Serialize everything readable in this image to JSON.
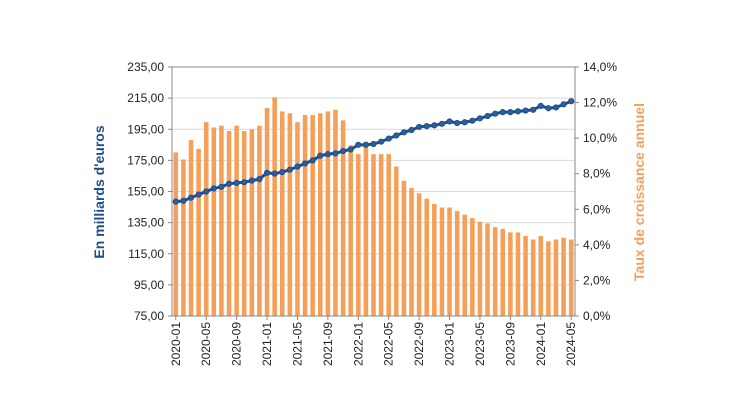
{
  "chart_data": {
    "type": "bar-line",
    "categories": [
      "2020-01",
      null,
      null,
      null,
      "2020-05",
      null,
      null,
      null,
      "2020-09",
      null,
      null,
      null,
      "2021-01",
      null,
      null,
      null,
      "2021-05",
      null,
      null,
      null,
      "2021-09",
      null,
      null,
      null,
      "2022-01",
      null,
      null,
      null,
      "2022-05",
      null,
      null,
      null,
      "2022-09",
      null,
      null,
      null,
      "2023-01",
      null,
      null,
      null,
      "2023-05",
      null,
      null,
      null,
      "2023-09",
      null,
      null,
      null,
      "2024-01",
      null,
      null,
      null,
      "2024-05"
    ],
    "series": [
      {
        "name": "Taux de croissance annuel",
        "type": "bar",
        "axis": "y2",
        "color": "#f5a05a",
        "values": [
          9.2,
          8.8,
          9.9,
          9.4,
          10.9,
          10.6,
          10.7,
          10.4,
          10.7,
          10.4,
          10.5,
          10.7,
          11.7,
          12.3,
          11.5,
          11.4,
          10.9,
          11.3,
          11.3,
          11.4,
          11.5,
          11.6,
          11.0,
          9.6,
          9.1,
          9.8,
          9.1,
          9.1,
          9.1,
          8.4,
          7.6,
          7.2,
          6.9,
          6.6,
          6.3,
          6.1,
          6.1,
          5.9,
          5.7,
          5.5,
          5.3,
          5.2,
          5.0,
          4.9,
          4.7,
          4.7,
          4.5,
          4.3,
          4.5,
          4.2,
          4.3,
          4.4,
          4.3
        ]
      },
      {
        "name": "En milliards d'euros",
        "type": "line",
        "axis": "y",
        "color": "#1f4e8c",
        "values": [
          148.5,
          149,
          151,
          153,
          155,
          157,
          158,
          160,
          160.5,
          161,
          162,
          163,
          167,
          166.5,
          167.5,
          169,
          171,
          173,
          175,
          178,
          179,
          179.5,
          181,
          182,
          185,
          185,
          185.5,
          187,
          189,
          191,
          193,
          194.5,
          196.5,
          197,
          197.5,
          198.5,
          200,
          199,
          199.5,
          200.5,
          202,
          203.5,
          205,
          206,
          206,
          206.5,
          207,
          207.5,
          210,
          208.5,
          209,
          211,
          213
        ]
      }
    ],
    "y_label": "En milliards d'euros",
    "y2_label": "Taux de croissance annuel",
    "ylim": [
      75,
      235
    ],
    "yticks": [
      {
        "value": 75,
        "label": "75,00"
      },
      {
        "value": 95,
        "label": "95,00"
      },
      {
        "value": 115,
        "label": "115,00"
      },
      {
        "value": 135,
        "label": "135,00"
      },
      {
        "value": 155,
        "label": "155,00"
      },
      {
        "value": 175,
        "label": "175,00"
      },
      {
        "value": 195,
        "label": "195,00"
      },
      {
        "value": 215,
        "label": "215,00"
      },
      {
        "value": 235,
        "label": "235,00"
      }
    ],
    "y2lim": [
      0,
      14
    ],
    "y2ticks": [
      {
        "value": 0,
        "label": "0,0%"
      },
      {
        "value": 2,
        "label": "2,0%"
      },
      {
        "value": 4,
        "label": "4,0%"
      },
      {
        "value": 6,
        "label": "6,0%"
      },
      {
        "value": 8,
        "label": "8,0%"
      },
      {
        "value": 10,
        "label": "10,0%"
      },
      {
        "value": 12,
        "label": "12,0%"
      },
      {
        "value": 14,
        "label": "14,0%"
      }
    ],
    "grid": true
  }
}
